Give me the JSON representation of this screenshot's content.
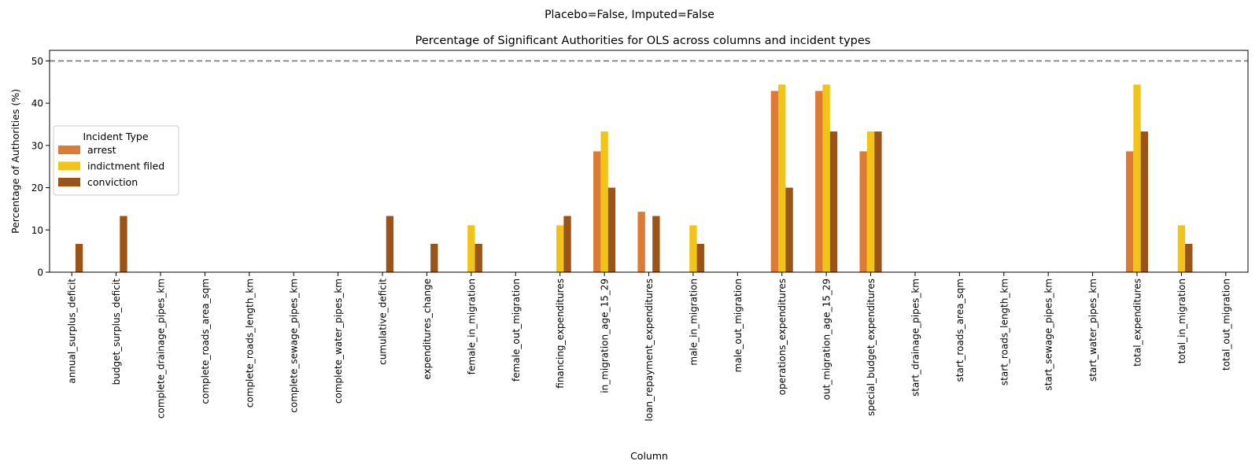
{
  "suptitle": "Placebo=False, Imputed=False",
  "chart_data": {
    "type": "bar",
    "title": "Percentage of Significant Authorities for OLS across columns and incident types",
    "xlabel": "Column",
    "ylabel": "Percentage of Authorities (%)",
    "ylim": [
      0,
      52.5
    ],
    "yticks": [
      0,
      10,
      20,
      30,
      40,
      50
    ],
    "reference_line": 50,
    "grid": false,
    "legend": {
      "title": "Incident Type",
      "placement": "center-left"
    },
    "categories": [
      "annual_surplus_deficit",
      "budget_surplus_deficit",
      "complete_drainage_pipes_km",
      "complete_roads_area_sqm",
      "complete_roads_length_km",
      "complete_sewage_pipes_km",
      "complete_water_pipes_km",
      "cumulative_deficit",
      "expenditures_change",
      "female_in_migration",
      "female_out_migration",
      "financing_expenditures",
      "in_migration_age_15_29",
      "loan_repayment_expenditures",
      "male_in_migration",
      "male_out_migration",
      "operations_expenditures",
      "out_migration_age_15_29",
      "special_budget_expenditures",
      "start_drainage_pipes_km",
      "start_roads_area_sqm",
      "start_roads_length_km",
      "start_sewage_pipes_km",
      "start_water_pipes_km",
      "total_expenditures",
      "total_in_migration",
      "total_out_migration"
    ],
    "series": [
      {
        "name": "arrest",
        "color": "#dd7a33",
        "values": [
          0,
          0,
          0,
          0,
          0,
          0,
          0,
          0,
          0,
          0,
          0,
          0,
          28.6,
          14.3,
          0,
          0,
          42.9,
          42.9,
          28.6,
          0,
          0,
          0,
          0,
          0,
          28.6,
          0,
          0
        ]
      },
      {
        "name": "indictment filed",
        "color": "#f2c418",
        "values": [
          0,
          0,
          0,
          0,
          0,
          0,
          0,
          0,
          0,
          11.1,
          0,
          11.1,
          33.3,
          0,
          11.1,
          0,
          44.4,
          44.4,
          33.3,
          0,
          0,
          0,
          0,
          0,
          44.4,
          11.1,
          0
        ]
      },
      {
        "name": "conviction",
        "color": "#9a5418",
        "values": [
          6.7,
          13.3,
          0,
          0,
          0,
          0,
          0,
          13.3,
          6.7,
          6.7,
          0,
          13.3,
          20.0,
          13.3,
          6.7,
          0,
          20.0,
          33.3,
          33.3,
          0,
          0,
          0,
          0,
          0,
          33.3,
          6.7,
          0
        ]
      }
    ]
  }
}
